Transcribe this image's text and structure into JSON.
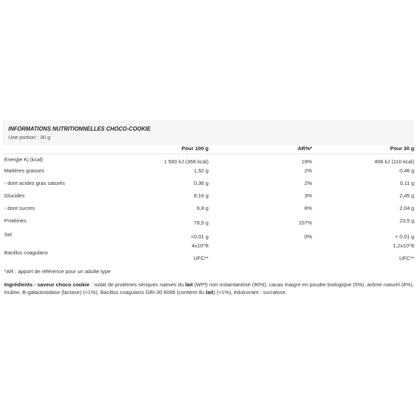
{
  "header": {
    "title": "INFORMATIONS NUTRITIONNELLES CHOCO-COOKIE",
    "portion": "Une portion : 30 g"
  },
  "columns": {
    "per100": "Pour 100 g",
    "ar": "AR%*",
    "per30": "Pour 30 g"
  },
  "rows": [
    {
      "label": "Energie Kj (kcal)",
      "per100": "1 560 kJ (368 kcal)",
      "ar": "19%",
      "per30": "468 kJ (110 kcal)"
    },
    {
      "label": "Matières grasses",
      "per100": "1,52 g",
      "ar": "2%",
      "per30": "0,46 g"
    },
    {
      "label": "- dont acides gras saturés",
      "per100": "0,36 g",
      "ar": "2%",
      "per30": "0,11 g"
    },
    {
      "label": "Glucides",
      "per100": "8,16 g",
      "ar": "3%",
      "per30": "2,45 g"
    },
    {
      "label": "- dont sucres",
      "per100": "6,8 g",
      "ar": "8%",
      "per30": "2,04 g"
    },
    {
      "label": "Protéines",
      "per100": "78,5 g",
      "ar": "157%",
      "per30": "23,5 g"
    },
    {
      "label": "Sel",
      "per100": "<0,01 g",
      "ar": "0%",
      "per30": "< 0,01 g"
    },
    {
      "label": "Bacillus coagulans",
      "per100": "4x10^8",
      "per100_unit": "UFC**",
      "per30": "1,2x10^8",
      "per30_unit": "UFC**"
    }
  ],
  "footnote": "*AR : apport de référence pour un adulte type",
  "ingredients": {
    "heading": "Ingrédients - saveur choco cookie",
    "t1": " : isolat de protéines sériques natives du ",
    "b1": "lait",
    "t2": " (WPI) non instantanéisé (90%), cacao maigre en poudre biologique (5%), arôme naturel (4%), inuline, B-galactosidase (lactase) (<1%),  Bacillus coagulans GBI-30 6086 (contient du ",
    "b2": "lait",
    "t3": ") (<1%), édulcorant : sucralose."
  }
}
